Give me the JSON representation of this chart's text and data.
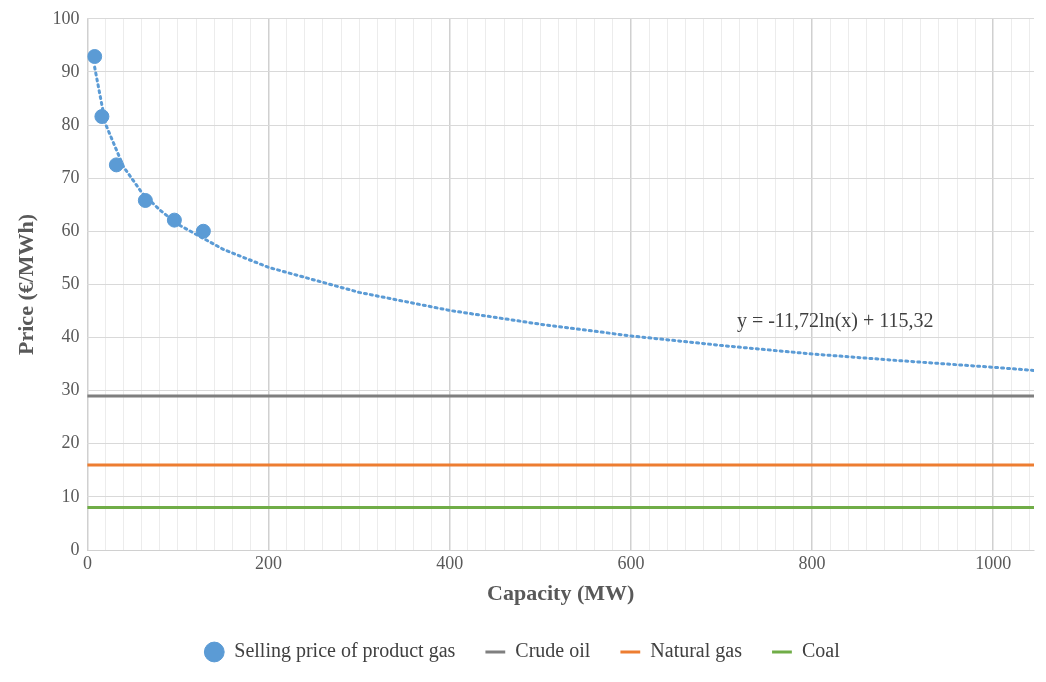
{
  "chart_data": {
    "type": "scatter",
    "xlabel": "Capacity (MW)",
    "ylabel": "Price (€/MWh)",
    "xlim": [
      0,
      1045
    ],
    "xticks": [
      0,
      {
        "value": 20,
        "label": null
      },
      {
        "value": 40,
        "label": null
      },
      {
        "value": 60,
        "label": null
      },
      {
        "value": 80,
        "label": null
      },
      {
        "value": 100,
        "label": null
      },
      {
        "value": 120,
        "label": null
      },
      {
        "value": 140,
        "label": null
      },
      {
        "value": 160,
        "label": null
      },
      {
        "value": 180,
        "label": null
      },
      200,
      {
        "value": 220,
        "label": null
      },
      {
        "value": 240,
        "label": null
      },
      {
        "value": 260,
        "label": null
      },
      {
        "value": 280,
        "label": null
      },
      {
        "value": 300,
        "label": null
      },
      {
        "value": 320,
        "label": null
      },
      {
        "value": 340,
        "label": null
      },
      {
        "value": 360,
        "label": null
      },
      {
        "value": 380,
        "label": null
      },
      400,
      {
        "value": 420,
        "label": null
      },
      {
        "value": 440,
        "label": null
      },
      {
        "value": 460,
        "label": null
      },
      {
        "value": 480,
        "label": null
      },
      {
        "value": 500,
        "label": null
      },
      {
        "value": 520,
        "label": null
      },
      {
        "value": 540,
        "label": null
      },
      {
        "value": 560,
        "label": null
      },
      {
        "value": 580,
        "label": null
      },
      600,
      {
        "value": 620,
        "label": null
      },
      {
        "value": 640,
        "label": null
      },
      {
        "value": 660,
        "label": null
      },
      {
        "value": 680,
        "label": null
      },
      {
        "value": 700,
        "label": null
      },
      {
        "value": 720,
        "label": null
      },
      {
        "value": 740,
        "label": null
      },
      {
        "value": 760,
        "label": null
      },
      {
        "value": 780,
        "label": null
      },
      800,
      {
        "value": 820,
        "label": null
      },
      {
        "value": 840,
        "label": null
      },
      {
        "value": 860,
        "label": null
      },
      {
        "value": 880,
        "label": null
      },
      {
        "value": 900,
        "label": null
      },
      {
        "value": 920,
        "label": null
      },
      {
        "value": 940,
        "label": null
      },
      {
        "value": 960,
        "label": null
      },
      {
        "value": 980,
        "label": null
      },
      1000,
      {
        "value": 1020,
        "label": null
      },
      {
        "value": 1040,
        "label": null
      }
    ],
    "ylim": [
      0,
      100
    ],
    "yticks": [
      0,
      10,
      20,
      30,
      40,
      50,
      60,
      70,
      80,
      90,
      100
    ],
    "grid": true,
    "legend": "bottom",
    "series": [
      {
        "name": "Selling price of product gas",
        "marker": "circle",
        "color": "#5b9bd5",
        "x": [
          8,
          16,
          32,
          64,
          96,
          128
        ],
        "values": [
          92.9,
          81.6,
          72.5,
          65.8,
          62.1,
          60.0
        ]
      },
      {
        "name": "Crude oil",
        "type": "line",
        "color": "#7f7f7f",
        "x": [
          0,
          1045
        ],
        "values": [
          29,
          29
        ]
      },
      {
        "name": "Natural gas",
        "type": "line",
        "color": "#ed7d31",
        "x": [
          0,
          1045
        ],
        "values": [
          16,
          16
        ]
      },
      {
        "name": "Coal",
        "type": "line",
        "color": "#70ad47",
        "x": [
          0,
          1045
        ],
        "values": [
          8,
          8
        ]
      },
      {
        "type": "line",
        "color": "#5b9bd5",
        "line_style": "dotted",
        "x": [
          8,
          20,
          40,
          60,
          80,
          100,
          150,
          200,
          300,
          400,
          500,
          600,
          700,
          800,
          900,
          1000,
          1045
        ],
        "values": [
          90.9,
          80.2,
          72.1,
          67.3,
          64.0,
          61.3,
          56.6,
          53.2,
          48.5,
          45.1,
          42.5,
          40.3,
          38.5,
          36.9,
          35.6,
          34.4,
          33.8
        ]
      }
    ],
    "annotations": [
      "y = -11,72ln(x) + 115,32"
    ]
  }
}
